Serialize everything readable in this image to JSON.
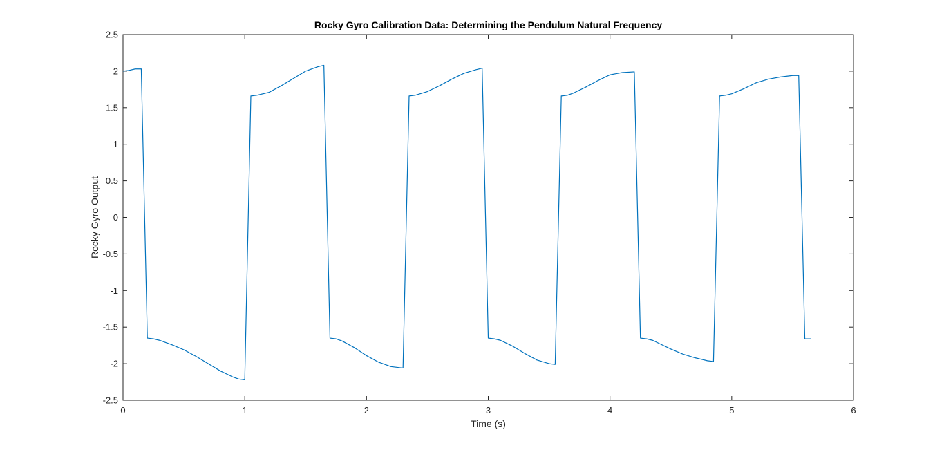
{
  "chart_data": {
    "type": "line",
    "title": "Rocky Gyro Calibration Data: Determining the Pendulum Natural Frequency",
    "xlabel": "Time (s)",
    "ylabel": "Rocky Gyro Output",
    "xlim": [
      0,
      6
    ],
    "ylim": [
      -2.5,
      2.5
    ],
    "xticks": [
      0,
      1,
      2,
      3,
      4,
      5,
      6
    ],
    "yticks": [
      -2.5,
      -2,
      -1.5,
      -1,
      -0.5,
      0,
      0.5,
      1,
      1.5,
      2,
      2.5
    ],
    "grid": false,
    "series_color": "#0072BD",
    "series": [
      {
        "x": [
          0,
          0.05,
          0.1,
          0.15,
          0.2,
          0.25,
          0.3,
          0.35,
          0.4,
          0.5,
          0.6,
          0.7,
          0.8,
          0.9,
          0.95,
          1.0,
          1.05,
          1.1,
          1.2,
          1.3,
          1.4,
          1.5,
          1.6,
          1.65,
          1.7,
          1.75,
          1.8,
          1.9,
          2.0,
          2.1,
          2.2,
          2.3,
          2.35,
          2.4,
          2.5,
          2.6,
          2.7,
          2.8,
          2.9,
          2.95,
          3.0,
          3.05,
          3.1,
          3.2,
          3.3,
          3.4,
          3.5,
          3.55,
          3.6,
          3.65,
          3.7,
          3.8,
          3.9,
          4.0,
          4.1,
          4.2,
          4.25,
          4.3,
          4.35,
          4.4,
          4.5,
          4.6,
          4.7,
          4.8,
          4.85,
          4.9,
          4.95,
          5.0,
          5.1,
          5.2,
          5.3,
          5.4,
          5.5,
          5.55,
          5.6,
          5.65
        ],
        "y": [
          2.0,
          2.01,
          2.03,
          2.03,
          -1.65,
          -1.66,
          -1.68,
          -1.71,
          -1.74,
          -1.81,
          -1.9,
          -2.0,
          -2.1,
          -2.18,
          -2.21,
          -2.22,
          1.66,
          1.67,
          1.71,
          1.8,
          1.9,
          2.0,
          2.06,
          2.08,
          -1.65,
          -1.66,
          -1.69,
          -1.78,
          -1.89,
          -1.98,
          -2.04,
          -2.06,
          1.66,
          1.67,
          1.72,
          1.8,
          1.89,
          1.97,
          2.02,
          2.04,
          -1.65,
          -1.66,
          -1.68,
          -1.76,
          -1.86,
          -1.95,
          -2.0,
          -2.01,
          1.66,
          1.67,
          1.7,
          1.78,
          1.87,
          1.95,
          1.98,
          1.99,
          -1.65,
          -1.66,
          -1.68,
          -1.72,
          -1.8,
          -1.87,
          -1.92,
          -1.96,
          -1.97,
          1.66,
          1.67,
          1.69,
          1.76,
          1.84,
          1.89,
          1.92,
          1.94,
          1.94,
          -1.66,
          -1.66
        ]
      }
    ]
  }
}
